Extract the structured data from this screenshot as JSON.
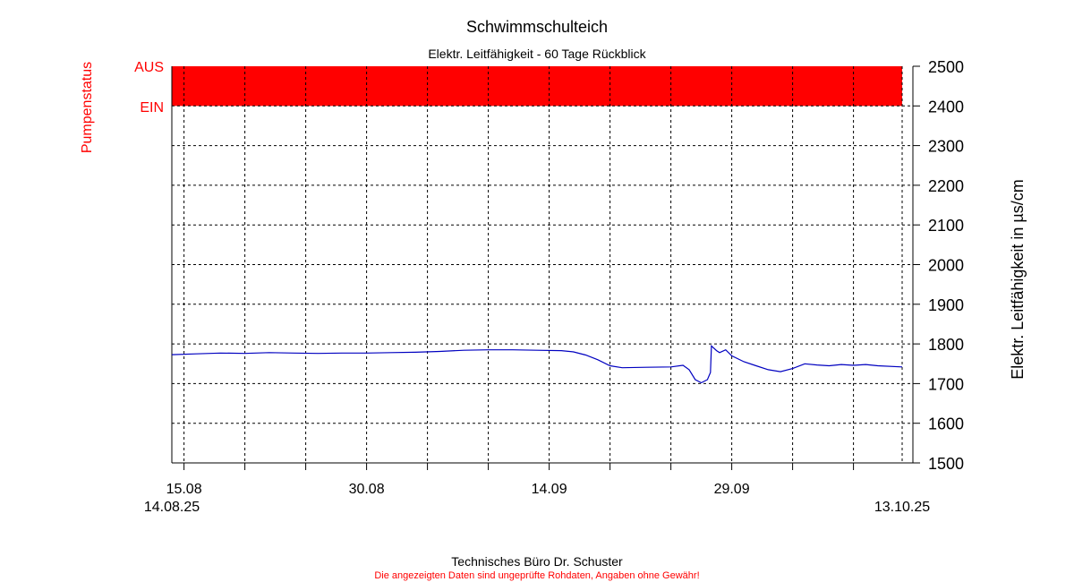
{
  "chart_data": {
    "type": "line",
    "title": "Schwimmschulteich",
    "subtitle": "Elektr. Leitfähigkeit - 60 Tage Rückblick",
    "ylabel": "Elektr. Leitfähigkeit in µs/cm",
    "ylabel_left": "Pumpenstatus",
    "ylim": [
      1500,
      2500
    ],
    "yticks": [
      1500,
      1600,
      1700,
      1800,
      1900,
      2000,
      2100,
      2200,
      2300,
      2400,
      2500
    ],
    "xlim": [
      "2025-08-14",
      "2025-10-13"
    ],
    "xticks": [
      {
        "date": "2025-08-15",
        "label": "15.08"
      },
      {
        "date": "2025-08-20",
        "label": ""
      },
      {
        "date": "2025-08-25",
        "label": ""
      },
      {
        "date": "2025-08-30",
        "label": "30.08"
      },
      {
        "date": "2025-09-04",
        "label": ""
      },
      {
        "date": "2025-09-09",
        "label": ""
      },
      {
        "date": "2025-09-14",
        "label": "14.09"
      },
      {
        "date": "2025-09-19",
        "label": ""
      },
      {
        "date": "2025-09-24",
        "label": ""
      },
      {
        "date": "2025-09-29",
        "label": "29.09"
      },
      {
        "date": "2025-10-04",
        "label": ""
      },
      {
        "date": "2025-10-09",
        "label": ""
      }
    ],
    "date_start_label": "14.08.25",
    "date_end_label": "13.10.25",
    "grid": true,
    "pump_status": {
      "labels": [
        "AUS",
        "EIN"
      ],
      "value": "AUS",
      "color": "#ff0000"
    },
    "series": [
      {
        "color": "#0000c0",
        "points": [
          [
            "2025-08-14",
            1773
          ],
          [
            "2025-08-16",
            1775
          ],
          [
            "2025-08-18",
            1777
          ],
          [
            "2025-08-20",
            1776
          ],
          [
            "2025-08-22",
            1778
          ],
          [
            "2025-08-24",
            1777
          ],
          [
            "2025-08-26",
            1776
          ],
          [
            "2025-08-28",
            1777
          ],
          [
            "2025-08-30",
            1777
          ],
          [
            "2025-09-01",
            1778
          ],
          [
            "2025-09-03",
            1779
          ],
          [
            "2025-09-05",
            1781
          ],
          [
            "2025-09-07",
            1784
          ],
          [
            "2025-09-09",
            1785
          ],
          [
            "2025-09-11",
            1785
          ],
          [
            "2025-09-13",
            1784
          ],
          [
            "2025-09-15",
            1783
          ],
          [
            "2025-09-16",
            1780
          ],
          [
            "2025-09-17",
            1772
          ],
          [
            "2025-09-18",
            1760
          ],
          [
            "2025-09-19",
            1745
          ],
          [
            "2025-09-20",
            1740
          ],
          [
            "2025-09-22",
            1741
          ],
          [
            "2025-09-24",
            1742
          ],
          [
            "2025-09-25",
            1746
          ],
          [
            "2025-09-25T12",
            1735
          ],
          [
            "2025-09-26",
            1710
          ],
          [
            "2025-09-26T12",
            1702
          ],
          [
            "2025-09-27",
            1710
          ],
          [
            "2025-09-27T06",
            1728
          ],
          [
            "2025-09-27T08",
            1795
          ],
          [
            "2025-09-27T18",
            1783
          ],
          [
            "2025-09-28",
            1778
          ],
          [
            "2025-09-28T12",
            1785
          ],
          [
            "2025-09-29",
            1770
          ],
          [
            "2025-09-30",
            1755
          ],
          [
            "2025-10-01",
            1745
          ],
          [
            "2025-10-02",
            1735
          ],
          [
            "2025-10-03",
            1730
          ],
          [
            "2025-10-04",
            1738
          ],
          [
            "2025-10-05",
            1750
          ],
          [
            "2025-10-06",
            1747
          ],
          [
            "2025-10-07",
            1745
          ],
          [
            "2025-10-08",
            1748
          ],
          [
            "2025-10-09",
            1746
          ],
          [
            "2025-10-10",
            1748
          ],
          [
            "2025-10-11",
            1745
          ],
          [
            "2025-10-13",
            1742
          ]
        ]
      }
    ]
  },
  "footer": {
    "company": "Technisches Büro Dr. Schuster",
    "disclaimer": "Die angezeigten Daten sind ungeprüfte Rohdaten, Angaben ohne Gewähr!",
    "disclaimer_color": "#ff0000"
  }
}
